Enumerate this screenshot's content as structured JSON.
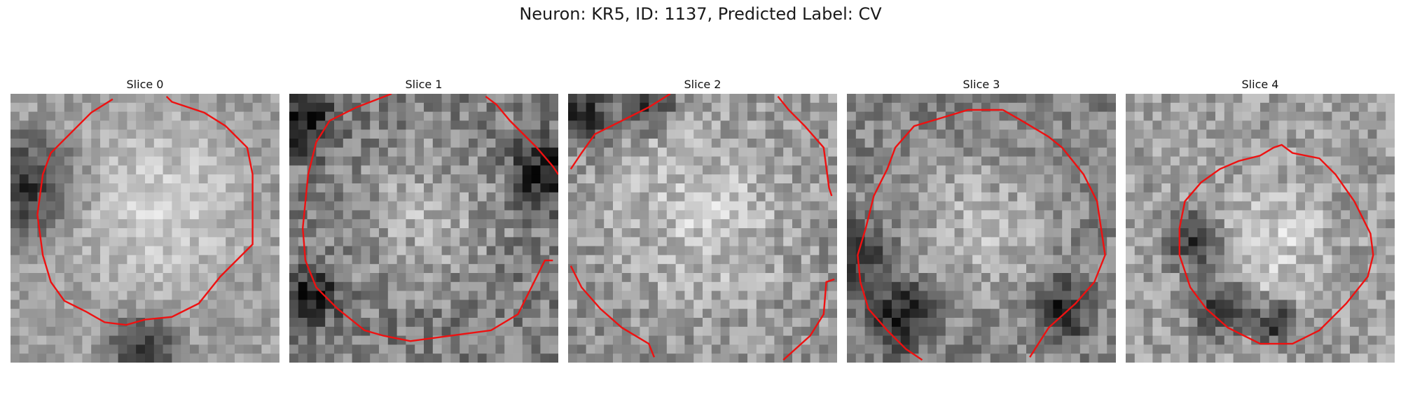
{
  "figure": {
    "title": "Neuron: KR5, ID: 1137, Predicted Label: CV"
  },
  "panels": [
    {
      "title": "Slice 0",
      "image": {
        "grid": 30,
        "base": 0.62,
        "bright_center": [
          0.55,
          0.42
        ],
        "bright_radius": 0.45,
        "dark_regions": [
          [
            0.05,
            0.35,
            0.18
          ],
          [
            0.5,
            0.95,
            0.12
          ]
        ],
        "noise": 0.12,
        "seed": 11
      },
      "contour": [
        [
          0.38,
          0.02
        ],
        [
          0.3,
          0.07
        ],
        [
          0.2,
          0.17
        ],
        [
          0.15,
          0.22
        ],
        [
          0.12,
          0.3
        ],
        [
          0.1,
          0.45
        ],
        [
          0.12,
          0.6
        ],
        [
          0.15,
          0.7
        ],
        [
          0.2,
          0.77
        ],
        [
          0.28,
          0.81
        ],
        [
          0.35,
          0.85
        ],
        [
          0.43,
          0.86
        ],
        [
          0.5,
          0.84
        ],
        [
          0.6,
          0.83
        ],
        [
          0.7,
          0.78
        ],
        [
          0.78,
          0.68
        ],
        [
          0.9,
          0.56
        ],
        [
          0.9,
          0.3
        ],
        [
          0.88,
          0.2
        ],
        [
          0.8,
          0.12
        ],
        [
          0.72,
          0.07
        ],
        [
          0.6,
          0.03
        ],
        [
          0.58,
          0.01
        ]
      ]
    },
    {
      "title": "Slice 1",
      "image": {
        "grid": 30,
        "base": 0.5,
        "bright_center": [
          0.5,
          0.45
        ],
        "bright_radius": 0.38,
        "dark_regions": [
          [
            0.05,
            0.1,
            0.12
          ],
          [
            0.95,
            0.3,
            0.12
          ],
          [
            0.08,
            0.75,
            0.1
          ]
        ],
        "noise": 0.18,
        "seed": 23
      },
      "contour": [
        [
          0.38,
          0.0
        ],
        [
          0.25,
          0.05
        ],
        [
          0.15,
          0.1
        ],
        [
          0.1,
          0.18
        ],
        [
          0.07,
          0.3
        ],
        [
          0.05,
          0.5
        ],
        [
          0.06,
          0.62
        ],
        [
          0.1,
          0.72
        ],
        [
          0.18,
          0.8
        ],
        [
          0.28,
          0.88
        ],
        [
          0.35,
          0.9
        ],
        [
          0.45,
          0.92
        ],
        [
          0.6,
          0.9
        ],
        [
          0.75,
          0.88
        ],
        [
          0.85,
          0.82
        ],
        [
          0.9,
          0.72
        ],
        [
          0.95,
          0.62
        ],
        [
          0.98,
          0.62
        ]
      ],
      "contour2": [
        [
          0.73,
          0.01
        ],
        [
          0.77,
          0.04
        ],
        [
          0.82,
          0.1
        ],
        [
          0.92,
          0.2
        ],
        [
          0.98,
          0.27
        ],
        [
          1.0,
          0.3
        ]
      ]
    },
    {
      "title": "Slice 2",
      "image": {
        "grid": 30,
        "base": 0.58,
        "bright_center": [
          0.5,
          0.45
        ],
        "bright_radius": 0.5,
        "dark_regions": [
          [
            0.05,
            0.08,
            0.1
          ],
          [
            0.3,
            0.05,
            0.08
          ]
        ],
        "noise": 0.17,
        "seed": 37
      },
      "contour": [
        [
          0.38,
          0.0
        ],
        [
          0.3,
          0.05
        ],
        [
          0.2,
          0.1
        ],
        [
          0.1,
          0.15
        ],
        [
          0.05,
          0.22
        ],
        [
          0.01,
          0.28
        ]
      ],
      "contour2": [
        [
          0.78,
          0.01
        ],
        [
          0.82,
          0.06
        ],
        [
          0.88,
          0.12
        ],
        [
          0.95,
          0.2
        ],
        [
          0.97,
          0.35
        ],
        [
          0.98,
          0.38
        ]
      ],
      "contour3": [
        [
          0.01,
          0.64
        ],
        [
          0.05,
          0.72
        ],
        [
          0.12,
          0.8
        ],
        [
          0.2,
          0.87
        ],
        [
          0.3,
          0.93
        ],
        [
          0.32,
          0.98
        ]
      ],
      "contour4": [
        [
          0.8,
          0.99
        ],
        [
          0.9,
          0.9
        ],
        [
          0.95,
          0.82
        ],
        [
          0.96,
          0.7
        ],
        [
          0.99,
          0.69
        ]
      ]
    },
    {
      "title": "Slice 3",
      "image": {
        "grid": 30,
        "base": 0.52,
        "bright_center": [
          0.5,
          0.5
        ],
        "bright_radius": 0.4,
        "dark_regions": [
          [
            0.05,
            0.6,
            0.1
          ],
          [
            0.2,
            0.82,
            0.12
          ],
          [
            0.8,
            0.8,
            0.1
          ]
        ],
        "noise": 0.16,
        "seed": 49
      },
      "contour": [
        [
          0.58,
          0.06
        ],
        [
          0.45,
          0.06
        ],
        [
          0.35,
          0.09
        ],
        [
          0.25,
          0.12
        ],
        [
          0.18,
          0.2
        ],
        [
          0.15,
          0.28
        ],
        [
          0.1,
          0.38
        ],
        [
          0.07,
          0.5
        ],
        [
          0.04,
          0.6
        ],
        [
          0.05,
          0.7
        ],
        [
          0.08,
          0.8
        ],
        [
          0.15,
          0.88
        ],
        [
          0.22,
          0.95
        ],
        [
          0.28,
          0.99
        ]
      ],
      "contour2": [
        [
          0.58,
          0.06
        ],
        [
          0.65,
          0.1
        ],
        [
          0.75,
          0.16
        ],
        [
          0.8,
          0.2
        ],
        [
          0.88,
          0.3
        ],
        [
          0.93,
          0.4
        ],
        [
          0.96,
          0.6
        ],
        [
          0.92,
          0.7
        ],
        [
          0.85,
          0.78
        ],
        [
          0.75,
          0.87
        ],
        [
          0.68,
          0.98
        ]
      ]
    },
    {
      "title": "Slice 4",
      "image": {
        "grid": 30,
        "base": 0.62,
        "bright_center": [
          0.55,
          0.55
        ],
        "bright_radius": 0.3,
        "dark_regions": [
          [
            0.25,
            0.55,
            0.1
          ],
          [
            0.35,
            0.8,
            0.1
          ],
          [
            0.55,
            0.85,
            0.08
          ]
        ],
        "noise": 0.16,
        "seed": 61
      },
      "contour": [
        [
          0.55,
          0.2
        ],
        [
          0.5,
          0.23
        ],
        [
          0.42,
          0.25
        ],
        [
          0.35,
          0.28
        ],
        [
          0.28,
          0.33
        ],
        [
          0.22,
          0.4
        ],
        [
          0.2,
          0.5
        ],
        [
          0.2,
          0.6
        ],
        [
          0.24,
          0.72
        ],
        [
          0.3,
          0.8
        ],
        [
          0.38,
          0.87
        ],
        [
          0.5,
          0.93
        ],
        [
          0.62,
          0.93
        ],
        [
          0.72,
          0.88
        ],
        [
          0.82,
          0.78
        ],
        [
          0.9,
          0.68
        ],
        [
          0.92,
          0.6
        ],
        [
          0.91,
          0.52
        ],
        [
          0.85,
          0.4
        ],
        [
          0.78,
          0.3
        ],
        [
          0.72,
          0.24
        ],
        [
          0.62,
          0.22
        ],
        [
          0.58,
          0.19
        ],
        [
          0.55,
          0.2
        ]
      ]
    }
  ]
}
